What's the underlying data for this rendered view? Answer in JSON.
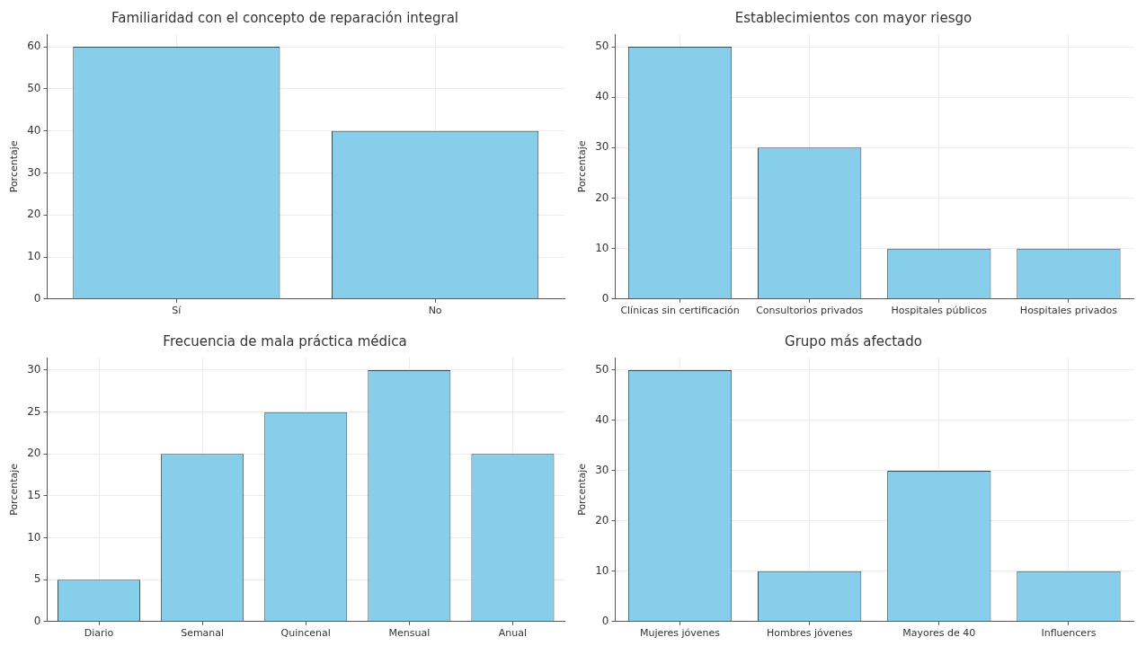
{
  "chart_data": [
    {
      "type": "bar",
      "title": "Familiaridad con el concepto de reparación integral",
      "ylabel": "Porcentaje",
      "categories": [
        "Sí",
        "No"
      ],
      "values": [
        60,
        40
      ],
      "color": "#87ceeb",
      "ylim": [
        0,
        63
      ],
      "yticks": [
        0,
        10,
        20,
        30,
        40,
        50,
        60
      ],
      "grid": true
    },
    {
      "type": "bar",
      "title": "Establecimientos con mayor riesgo",
      "ylabel": "Porcentaje",
      "categories": [
        "Clínicas sin certificación",
        "Consultorios privados",
        "Hospitales públicos",
        "Hospitales privados"
      ],
      "values": [
        50,
        30,
        10,
        10
      ],
      "color": "#87ceeb",
      "ylim": [
        0,
        52.5
      ],
      "yticks": [
        0,
        10,
        20,
        30,
        40,
        50
      ],
      "grid": true
    },
    {
      "type": "bar",
      "title": "Frecuencia de mala práctica médica",
      "ylabel": "Porcentaje",
      "categories": [
        "Diario",
        "Semanal",
        "Quincenal",
        "Mensual",
        "Anual"
      ],
      "values": [
        5,
        20,
        25,
        30,
        20
      ],
      "color": "#87ceeb",
      "ylim": [
        0,
        31.5
      ],
      "yticks": [
        0,
        5,
        10,
        15,
        20,
        25,
        30
      ],
      "grid": true
    },
    {
      "type": "bar",
      "title": "Grupo más afectado",
      "ylabel": "Porcentaje",
      "categories": [
        "Mujeres jóvenes",
        "Hombres jóvenes",
        "Mayores de 40",
        "Influencers"
      ],
      "values": [
        50,
        10,
        30,
        10
      ],
      "color": "#87ceeb",
      "ylim": [
        0,
        52.5
      ],
      "yticks": [
        0,
        10,
        20,
        30,
        40,
        50
      ],
      "grid": true
    }
  ]
}
